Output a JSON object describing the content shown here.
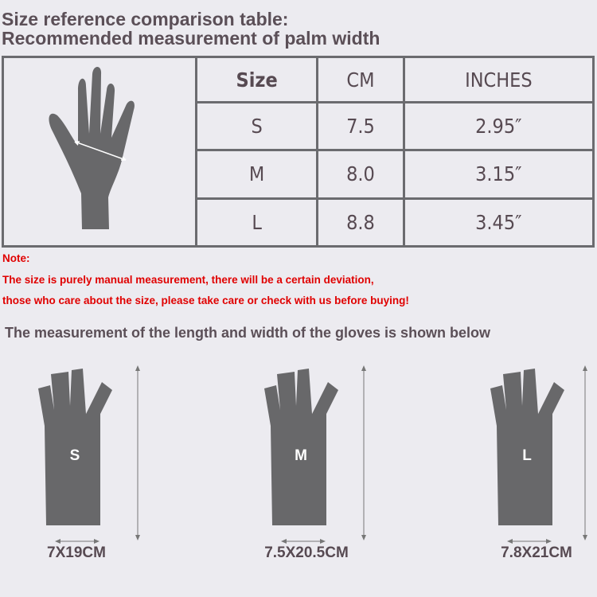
{
  "title_line1": "Size reference comparison table:",
  "title_line2": "Recommended measurement of palm width",
  "table": {
    "headers": [
      "Size",
      "CM",
      "INCHES"
    ],
    "rows": [
      {
        "size": "S",
        "cm": "7.5",
        "inches": "2.95″"
      },
      {
        "size": "M",
        "cm": "8.0",
        "inches": "3.15″"
      },
      {
        "size": "L",
        "cm": "8.8",
        "inches": "3.45″"
      }
    ]
  },
  "note": {
    "label": "Note:",
    "line1": "The size is purely manual measurement, there will be a certain deviation,",
    "line2": "those who care about the size, please take care or check with us before buying!"
  },
  "subtitle": "The measurement of the length and width of the gloves is shown below",
  "gloves": [
    {
      "size": "S",
      "dimensions": "7X19CM"
    },
    {
      "size": "M",
      "dimensions": "7.5X20.5CM"
    },
    {
      "size": "L",
      "dimensions": "7.8X21CM"
    }
  ],
  "colors": {
    "silhouette": "#68686a",
    "note": "#e00000",
    "background": "#ecebf0"
  }
}
